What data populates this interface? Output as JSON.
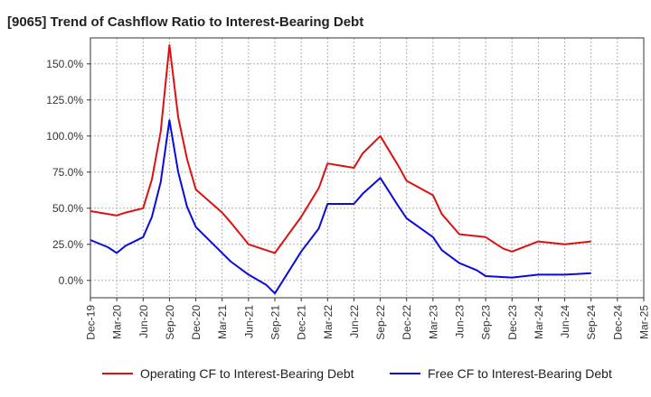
{
  "title": "[9065]  Trend of Cashflow Ratio to Interest-Bearing Debt",
  "chart_data": {
    "type": "line",
    "title": "[9065]  Trend of Cashflow Ratio to Interest-Bearing Debt",
    "xlabel": "",
    "ylabel": "",
    "ylim": [
      -12,
      168
    ],
    "y_ticks": [
      0,
      25,
      50,
      75,
      100,
      125,
      150
    ],
    "y_tick_labels": [
      "0.0%",
      "25.0%",
      "50.0%",
      "75.0%",
      "100.0%",
      "125.0%",
      "150.0%"
    ],
    "x_range": [
      "Dec-19",
      "Mar-25"
    ],
    "x_tick_labels": [
      "Dec-19",
      "Mar-20",
      "Jun-20",
      "Sep-20",
      "Dec-20",
      "Mar-21",
      "Jun-21",
      "Sep-21",
      "Dec-21",
      "Mar-22",
      "Jun-22",
      "Sep-22",
      "Dec-22",
      "Mar-23",
      "Jun-23",
      "Sep-23",
      "Dec-23",
      "Mar-24",
      "Jun-24",
      "Sep-24",
      "Dec-24",
      "Mar-25"
    ],
    "grid": true,
    "legend": "bottom",
    "series": [
      {
        "name": "Operating CF to Interest-Bearing Debt",
        "color": "#dd1111",
        "points": [
          [
            "Dec-19",
            48
          ],
          [
            "Mar-20",
            45
          ],
          [
            "Apr-20",
            47
          ],
          [
            "Jun-20",
            50
          ],
          [
            "Jul-20",
            70
          ],
          [
            "Aug-20",
            103
          ],
          [
            "Sep-20",
            163
          ],
          [
            "Oct-20",
            113
          ],
          [
            "Nov-20",
            84
          ],
          [
            "Dec-20",
            63
          ],
          [
            "Mar-21",
            47
          ],
          [
            "Apr-21",
            40
          ],
          [
            "Jun-21",
            25
          ],
          [
            "Sep-21",
            19
          ],
          [
            "Dec-21",
            44
          ],
          [
            "Feb-22",
            64
          ],
          [
            "Mar-22",
            81
          ],
          [
            "Jun-22",
            78
          ],
          [
            "Jul-22",
            88
          ],
          [
            "Sep-22",
            100
          ],
          [
            "Nov-22",
            80
          ],
          [
            "Dec-22",
            69
          ],
          [
            "Mar-23",
            59
          ],
          [
            "Apr-23",
            46
          ],
          [
            "Jun-23",
            32
          ],
          [
            "Sep-23",
            30
          ],
          [
            "Nov-23",
            22
          ],
          [
            "Dec-23",
            20
          ],
          [
            "Mar-24",
            27
          ],
          [
            "Jun-24",
            25
          ],
          [
            "Sep-24",
            27
          ]
        ]
      },
      {
        "name": "Free CF to Interest-Bearing Debt",
        "color": "#0b0bdd",
        "points": [
          [
            "Dec-19",
            28
          ],
          [
            "Feb-20",
            23
          ],
          [
            "Mar-20",
            19
          ],
          [
            "Apr-20",
            24
          ],
          [
            "Jun-20",
            30
          ],
          [
            "Jul-20",
            44
          ],
          [
            "Aug-20",
            68
          ],
          [
            "Sep-20",
            111
          ],
          [
            "Oct-20",
            75
          ],
          [
            "Nov-20",
            51
          ],
          [
            "Dec-20",
            37
          ],
          [
            "Mar-21",
            19
          ],
          [
            "Apr-21",
            13
          ],
          [
            "Jun-21",
            4
          ],
          [
            "Aug-21",
            -3
          ],
          [
            "Sep-21",
            -9
          ],
          [
            "Dec-21",
            20
          ],
          [
            "Feb-22",
            36
          ],
          [
            "Mar-22",
            53
          ],
          [
            "Jun-22",
            53
          ],
          [
            "Jul-22",
            60
          ],
          [
            "Sep-22",
            71
          ],
          [
            "Nov-22",
            52
          ],
          [
            "Dec-22",
            43
          ],
          [
            "Mar-23",
            30
          ],
          [
            "Apr-23",
            21
          ],
          [
            "Jun-23",
            12
          ],
          [
            "Aug-23",
            7
          ],
          [
            "Sep-23",
            3
          ],
          [
            "Dec-23",
            2
          ],
          [
            "Mar-24",
            4
          ],
          [
            "Jun-24",
            4
          ],
          [
            "Sep-24",
            5
          ]
        ]
      }
    ]
  }
}
